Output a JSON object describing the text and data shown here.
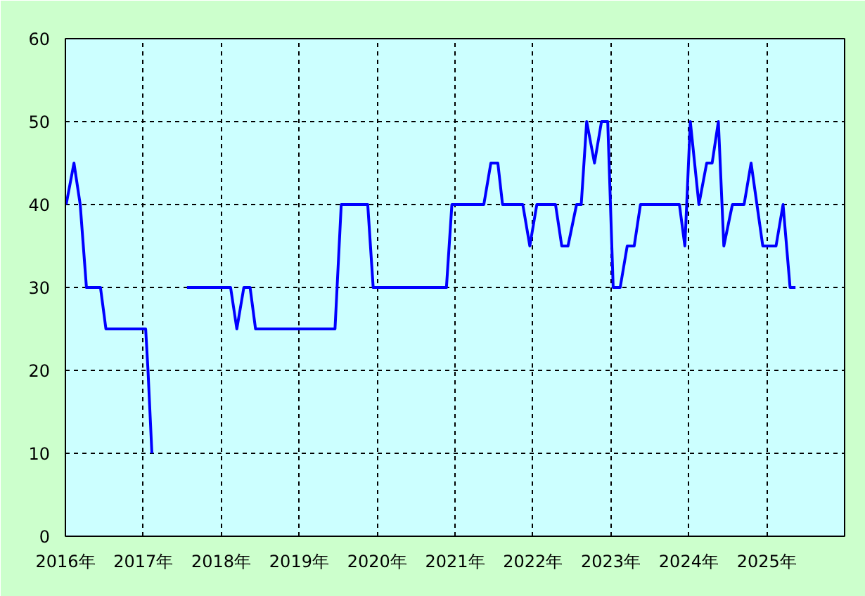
{
  "chart_data": {
    "type": "line",
    "grid": true,
    "xlim": [
      2016,
      2026
    ],
    "ylim": [
      0,
      60
    ],
    "xticks": [
      {
        "value": 2016,
        "label": "2016年"
      },
      {
        "value": 2017,
        "label": "2017年"
      },
      {
        "value": 2018,
        "label": "2018年"
      },
      {
        "value": 2019,
        "label": "2019年"
      },
      {
        "value": 2020,
        "label": "2020年"
      },
      {
        "value": 2021,
        "label": "2021年"
      },
      {
        "value": 2022,
        "label": "2022年"
      },
      {
        "value": 2023,
        "label": "2023年"
      },
      {
        "value": 2024,
        "label": "2024年"
      },
      {
        "value": 2025,
        "label": "2025年"
      },
      {
        "value": 2026,
        "label": null
      }
    ],
    "yticks": [
      0,
      10,
      20,
      30,
      40,
      50,
      60
    ],
    "series": [
      {
        "color": "#0000ff",
        "x": [
          2016.01,
          2016.11,
          2016.19,
          2016.27,
          2016.45,
          2016.52,
          2017.03,
          2017.06,
          2017.11,
          2017.3,
          2017.56,
          2018.12,
          2018.2,
          2018.29,
          2018.37,
          2018.44,
          2019.46,
          2019.54,
          2019.88,
          2019.95,
          2020.89,
          2020.96,
          2021.37,
          2021.46,
          2021.55,
          2021.61,
          2021.87,
          2021.96,
          2022.05,
          2022.29,
          2022.37,
          2022.45,
          2022.56,
          2022.62,
          2022.69,
          2022.79,
          2022.88,
          2022.96,
          2023.03,
          2023.12,
          2023.21,
          2023.3,
          2023.38,
          2023.88,
          2023.95,
          2024.02,
          2024.13,
          2024.23,
          2024.3,
          2024.38,
          2024.45,
          2024.56,
          2024.71,
          2024.8,
          2024.95,
          2025.12,
          2025.21,
          2025.3,
          2025.37
        ],
        "values": [
          40,
          45,
          40,
          30,
          30,
          25,
          25,
          20,
          10,
          null,
          30,
          30,
          25,
          30,
          30,
          25,
          25,
          40,
          40,
          30,
          30,
          40,
          40,
          45,
          45,
          40,
          40,
          35,
          40,
          40,
          35,
          35,
          40,
          40,
          50,
          45,
          50,
          50,
          30,
          30,
          35,
          35,
          40,
          40,
          35,
          50,
          40,
          45,
          45,
          50,
          35,
          40,
          40,
          45,
          35,
          35,
          40,
          30,
          30
        ]
      }
    ]
  }
}
